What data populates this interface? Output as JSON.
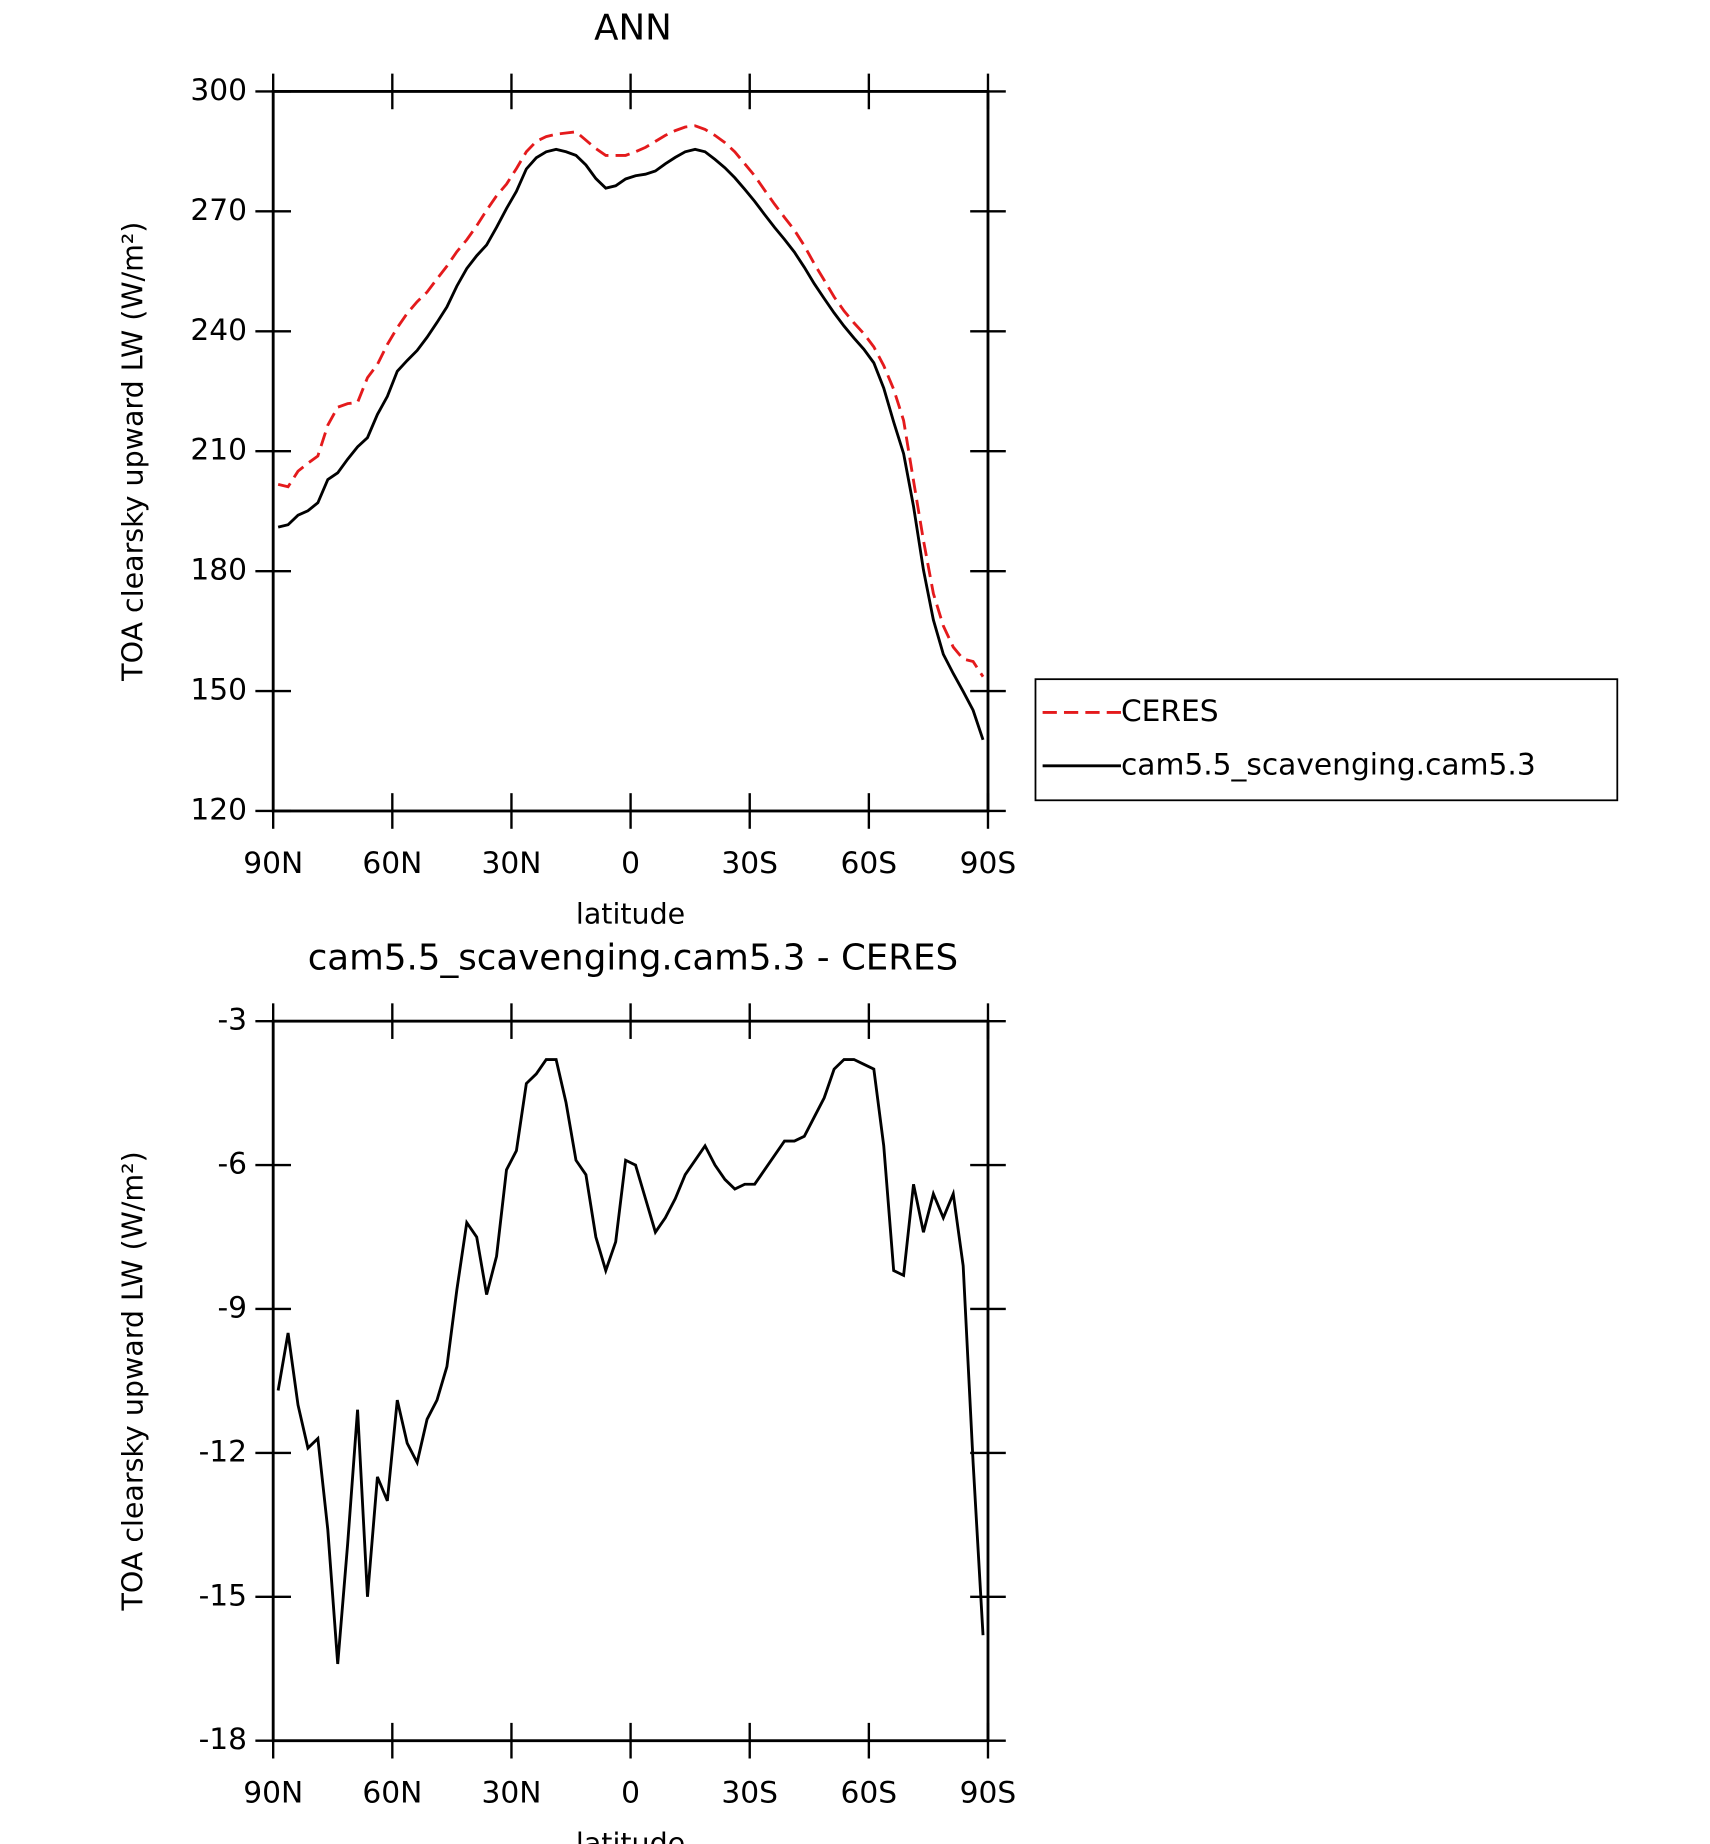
{
  "chart_data": [
    {
      "type": "line",
      "title": "ANN",
      "xlabel": "latitude",
      "ylabel": "TOA clearsky upward LW (W/m²)",
      "x": [
        88.75,
        86.25,
        83.75,
        81.25,
        78.75,
        76.25,
        73.75,
        71.25,
        68.75,
        66.25,
        63.75,
        61.25,
        58.75,
        56.25,
        53.75,
        51.25,
        48.75,
        46.25,
        43.75,
        41.25,
        38.75,
        36.25,
        33.75,
        31.25,
        28.75,
        26.25,
        23.75,
        21.25,
        18.75,
        16.25,
        13.75,
        11.25,
        8.75,
        6.25,
        3.75,
        1.25,
        -1.25,
        -3.75,
        -6.25,
        -8.75,
        -11.25,
        -13.75,
        -16.25,
        -18.75,
        -21.25,
        -23.75,
        -26.25,
        -28.75,
        -31.25,
        -33.75,
        -36.25,
        -38.75,
        -41.25,
        -43.75,
        -46.25,
        -48.75,
        -51.25,
        -53.75,
        -56.25,
        -58.75,
        -61.25,
        -63.75,
        -66.25,
        -68.75,
        -71.25,
        -73.75,
        -76.25,
        -78.75,
        -81.25,
        -83.75,
        -86.25,
        -88.75
      ],
      "series": [
        {
          "name": "CERES",
          "color": "#e41a1c",
          "dash": true,
          "values": [
            201.7,
            201.1,
            205.0,
            207.0,
            208.8,
            216.5,
            221.0,
            221.9,
            222.2,
            228.4,
            231.7,
            236.7,
            240.9,
            244.5,
            247.4,
            249.8,
            253.1,
            256.3,
            259.9,
            262.9,
            266.4,
            270.3,
            273.9,
            276.8,
            280.7,
            284.9,
            287.5,
            288.7,
            289.3,
            289.6,
            289.9,
            287.8,
            285.7,
            284.0,
            284.0,
            284.0,
            284.9,
            286.0,
            287.5,
            289.0,
            290.2,
            291.1,
            291.4,
            290.5,
            289.0,
            287.2,
            284.9,
            281.9,
            278.9,
            275.3,
            271.8,
            268.5,
            265.3,
            261.4,
            256.9,
            252.8,
            248.6,
            245.1,
            242.1,
            239.4,
            236.1,
            231.4,
            225.5,
            217.7,
            202.6,
            187.7,
            174.4,
            166.3,
            161.0,
            158.0,
            157.4,
            153.6
          ]
        },
        {
          "name": "cam5.5_scavenging.cam5.3",
          "color": "#000000",
          "dash": false,
          "values": [
            191.0,
            191.6,
            194.0,
            195.1,
            197.1,
            202.9,
            204.6,
            208.0,
            211.1,
            213.4,
            219.2,
            223.7,
            230.0,
            232.7,
            235.2,
            238.5,
            242.2,
            246.1,
            251.3,
            255.7,
            258.9,
            261.6,
            266.0,
            270.7,
            275.0,
            280.6,
            283.4,
            284.9,
            285.5,
            284.9,
            284.0,
            281.6,
            278.2,
            275.8,
            276.4,
            278.1,
            278.9,
            279.3,
            280.1,
            281.9,
            283.5,
            284.9,
            285.5,
            284.9,
            283.0,
            280.9,
            278.4,
            275.5,
            272.5,
            269.2,
            266.0,
            263.0,
            259.8,
            256.0,
            251.9,
            248.2,
            244.6,
            241.3,
            238.3,
            235.5,
            232.1,
            225.8,
            217.3,
            209.4,
            196.2,
            180.3,
            167.8,
            159.2,
            154.4,
            149.9,
            145.2,
            137.8
          ]
        }
      ],
      "xlim": [
        90,
        -90
      ],
      "xticks": [
        {
          "value": 90,
          "label": "90N"
        },
        {
          "value": 60,
          "label": "60N"
        },
        {
          "value": 30,
          "label": "30N"
        },
        0,
        {
          "value": -30,
          "label": "30S"
        },
        {
          "value": -60,
          "label": "60S"
        },
        {
          "value": -90,
          "label": "90S"
        }
      ],
      "ylim": [
        120,
        300
      ],
      "yticks": [
        120,
        150,
        180,
        210,
        240,
        270,
        300
      ],
      "legend": "right"
    },
    {
      "type": "line",
      "title": "cam5.5_scavenging.cam5.3 - CERES",
      "xlabel": "latitude",
      "ylabel": "TOA clearsky upward LW (W/m²)",
      "x": [
        88.75,
        86.25,
        83.75,
        81.25,
        78.75,
        76.25,
        73.75,
        71.25,
        68.75,
        66.25,
        63.75,
        61.25,
        58.75,
        56.25,
        53.75,
        51.25,
        48.75,
        46.25,
        43.75,
        41.25,
        38.75,
        36.25,
        33.75,
        31.25,
        28.75,
        26.25,
        23.75,
        21.25,
        18.75,
        16.25,
        13.75,
        11.25,
        8.75,
        6.25,
        3.75,
        1.25,
        -1.25,
        -3.75,
        -6.25,
        -8.75,
        -11.25,
        -13.75,
        -16.25,
        -18.75,
        -21.25,
        -23.75,
        -26.25,
        -28.75,
        -31.25,
        -33.75,
        -36.25,
        -38.75,
        -41.25,
        -43.75,
        -46.25,
        -48.75,
        -51.25,
        -53.75,
        -56.25,
        -58.75,
        -61.25,
        -63.75,
        -66.25,
        -68.75,
        -71.25,
        -73.75,
        -76.25,
        -78.75,
        -81.25,
        -83.75,
        -86.25,
        -88.75
      ],
      "series": [
        {
          "color": "#000000",
          "dash": false,
          "values": [
            -10.7,
            -9.5,
            -11.0,
            -11.9,
            -11.7,
            -13.6,
            -16.4,
            -13.9,
            -11.1,
            -15.0,
            -12.5,
            -13.0,
            -10.9,
            -11.8,
            -12.2,
            -11.3,
            -10.9,
            -10.2,
            -8.6,
            -7.2,
            -7.5,
            -8.7,
            -7.9,
            -6.1,
            -5.7,
            -4.3,
            -4.1,
            -3.8,
            -3.8,
            -4.7,
            -5.9,
            -6.2,
            -7.5,
            -8.2,
            -7.6,
            -5.9,
            -6.0,
            -6.7,
            -7.4,
            -7.1,
            -6.7,
            -6.2,
            -5.9,
            -5.6,
            -6.0,
            -6.3,
            -6.5,
            -6.4,
            -6.4,
            -6.1,
            -5.8,
            -5.5,
            -5.5,
            -5.4,
            -5.0,
            -4.6,
            -4.0,
            -3.8,
            -3.8,
            -3.9,
            -4.0,
            -5.6,
            -8.2,
            -8.3,
            -6.4,
            -7.4,
            -6.6,
            -7.1,
            -6.6,
            -8.1,
            -12.2,
            -15.8
          ]
        }
      ],
      "xlim": [
        90,
        -90
      ],
      "xticks": [
        {
          "value": 90,
          "label": "90N"
        },
        {
          "value": 60,
          "label": "60N"
        },
        {
          "value": 30,
          "label": "30N"
        },
        0,
        {
          "value": -30,
          "label": "30S"
        },
        {
          "value": -60,
          "label": "60S"
        },
        {
          "value": -90,
          "label": "90S"
        }
      ],
      "ylim": [
        -18,
        -3
      ],
      "yticks": [
        -18,
        -15,
        -12,
        -9,
        -6,
        -3
      ]
    }
  ]
}
